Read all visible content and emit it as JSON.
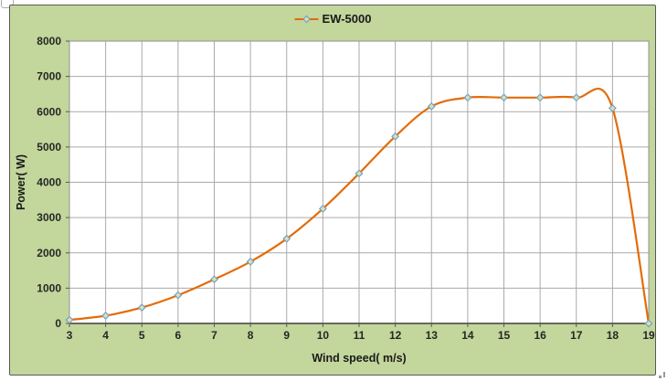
{
  "legend": {
    "label": "EW-5000"
  },
  "chart_data": {
    "type": "line",
    "title": "",
    "xlabel": "Wind speed( m/s)",
    "ylabel": "Power( W)",
    "x": [
      3,
      4,
      5,
      6,
      7,
      8,
      9,
      10,
      11,
      12,
      13,
      14,
      15,
      16,
      17,
      18,
      19
    ],
    "series": [
      {
        "name": "EW-5000",
        "values": [
          100,
          220,
          450,
          800,
          1250,
          1750,
          2400,
          3250,
          4250,
          5300,
          6150,
          6400,
          6400,
          6400,
          6400,
          6100,
          0
        ]
      }
    ],
    "xlim": [
      3,
      19
    ],
    "ylim": [
      0,
      8000
    ],
    "x_ticks": [
      3,
      4,
      5,
      6,
      7,
      8,
      9,
      10,
      11,
      12,
      13,
      14,
      15,
      16,
      17,
      18,
      19
    ],
    "y_ticks": [
      0,
      1000,
      2000,
      3000,
      4000,
      5000,
      6000,
      7000,
      8000
    ],
    "grid": true,
    "smooth": true,
    "marker": "diamond",
    "legend_position": "top-center",
    "colors": {
      "line": "#e36c09",
      "marker_fill": "#d9e1b4",
      "marker_stroke": "#77a1c4",
      "chart_background": "#c3d69b",
      "plot_background": "#ffffff",
      "gridline": "#aaaaaa",
      "plot_border": "#929292",
      "axis_line": "#3f3f3f",
      "tick": "#595959",
      "text": "#262626"
    }
  }
}
